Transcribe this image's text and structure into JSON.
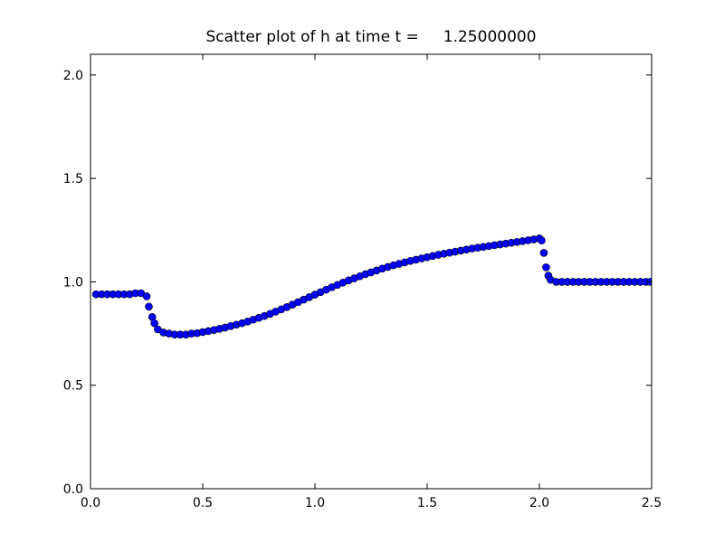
{
  "chart_data": {
    "type": "scatter",
    "title": "Scatter plot of h at time t =     1.25000000",
    "x": [
      0.025,
      0.05,
      0.075,
      0.1,
      0.125,
      0.15,
      0.175,
      0.2,
      0.225,
      0.25,
      0.26,
      0.275,
      0.285,
      0.3,
      0.325,
      0.35,
      0.375,
      0.4,
      0.425,
      0.45,
      0.475,
      0.5,
      0.525,
      0.55,
      0.575,
      0.6,
      0.625,
      0.65,
      0.675,
      0.7,
      0.725,
      0.75,
      0.775,
      0.8,
      0.825,
      0.85,
      0.875,
      0.9,
      0.925,
      0.95,
      0.975,
      1.0,
      1.025,
      1.05,
      1.075,
      1.1,
      1.125,
      1.15,
      1.175,
      1.2,
      1.225,
      1.25,
      1.275,
      1.3,
      1.325,
      1.35,
      1.375,
      1.4,
      1.425,
      1.45,
      1.475,
      1.5,
      1.525,
      1.55,
      1.575,
      1.6,
      1.625,
      1.65,
      1.675,
      1.7,
      1.725,
      1.75,
      1.775,
      1.8,
      1.825,
      1.85,
      1.875,
      1.9,
      1.925,
      1.95,
      1.975,
      2.0,
      2.01,
      2.02,
      2.03,
      2.04,
      2.05,
      2.075,
      2.1,
      2.125,
      2.15,
      2.175,
      2.2,
      2.225,
      2.25,
      2.275,
      2.3,
      2.325,
      2.35,
      2.375,
      2.4,
      2.425,
      2.45,
      2.475,
      2.495
    ],
    "series": [
      {
        "color": "#0000ff",
        "edgecolor": "#000000",
        "values": [
          0.94,
          0.94,
          0.94,
          0.94,
          0.94,
          0.94,
          0.94,
          0.945,
          0.945,
          0.93,
          0.88,
          0.83,
          0.8,
          0.77,
          0.755,
          0.75,
          0.745,
          0.745,
          0.745,
          0.75,
          0.752,
          0.757,
          0.762,
          0.767,
          0.773,
          0.779,
          0.786,
          0.793,
          0.8,
          0.808,
          0.817,
          0.826,
          0.835,
          0.845,
          0.856,
          0.867,
          0.878,
          0.89,
          0.902,
          0.914,
          0.926,
          0.938,
          0.95,
          0.962,
          0.974,
          0.985,
          0.996,
          1.007,
          1.017,
          1.027,
          1.037,
          1.046,
          1.055,
          1.064,
          1.072,
          1.08,
          1.087,
          1.094,
          1.101,
          1.107,
          1.113,
          1.119,
          1.125,
          1.131,
          1.136,
          1.141,
          1.146,
          1.151,
          1.156,
          1.161,
          1.165,
          1.169,
          1.173,
          1.177,
          1.181,
          1.185,
          1.189,
          1.193,
          1.197,
          1.201,
          1.205,
          1.21,
          1.2,
          1.14,
          1.07,
          1.03,
          1.01,
          1.0,
          1.0,
          1.0,
          1.0,
          1.0,
          1.0,
          1.0,
          1.0,
          1.0,
          1.0,
          1.0,
          1.0,
          1.0,
          1.0,
          1.0,
          1.0,
          1.0,
          1.0
        ]
      }
    ],
    "xlim": [
      0,
      2.5
    ],
    "ylim": [
      0,
      2.1
    ],
    "xticks": [
      {
        "value": 0,
        "label": "0.0"
      },
      {
        "value": 0.5,
        "label": "0.5"
      },
      {
        "value": 1,
        "label": "1.0"
      },
      {
        "value": 1.5,
        "label": "1.5"
      },
      {
        "value": 2,
        "label": "2.0"
      },
      {
        "value": 2.5,
        "label": "2.5"
      }
    ],
    "yticks": [
      {
        "value": 0,
        "label": "0.0"
      },
      {
        "value": 0.5,
        "label": "0.5"
      },
      {
        "value": 1,
        "label": "1.0"
      },
      {
        "value": 1.5,
        "label": "1.5"
      },
      {
        "value": 2,
        "label": "2.0"
      }
    ]
  }
}
